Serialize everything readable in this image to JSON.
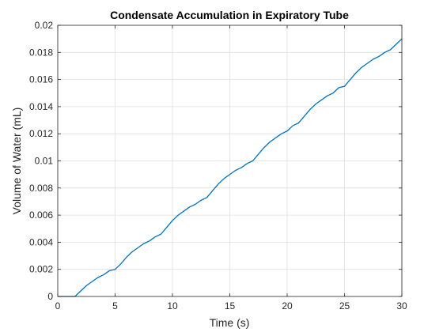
{
  "chart_data": {
    "type": "line",
    "title": "Condensate Accumulation in Expiratory Tube",
    "xlabel": "Time (s)",
    "ylabel": "Volume of Water (mL)",
    "xlim": [
      0,
      30
    ],
    "ylim": [
      0,
      0.02
    ],
    "x_ticks": [
      0,
      5,
      10,
      15,
      20,
      25,
      30
    ],
    "x_tick_labels": [
      "0",
      "5",
      "10",
      "15",
      "20",
      "25",
      "30"
    ],
    "y_ticks": [
      0,
      0.002,
      0.004,
      0.006,
      0.008,
      0.01,
      0.012,
      0.014,
      0.016,
      0.018,
      0.02
    ],
    "y_tick_labels": [
      "0",
      "0.002",
      "0.004",
      "0.006",
      "0.008",
      "0.01",
      "0.012",
      "0.014",
      "0.016",
      "0.018",
      "0.02"
    ],
    "grid": true,
    "line_color": "#0072BD",
    "series": [
      {
        "x": [
          0,
          1.5,
          2,
          2.5,
          3,
          3.5,
          4,
          4.5,
          5,
          5.5,
          6,
          6.5,
          7,
          7.5,
          8,
          8.5,
          9,
          9.5,
          10,
          10.5,
          11,
          11.5,
          12,
          12.5,
          13,
          13.5,
          14,
          14.5,
          15,
          15.5,
          16,
          16.5,
          17,
          17.5,
          18,
          18.5,
          19,
          19.5,
          20,
          20.5,
          21,
          21.5,
          22,
          22.5,
          23,
          23.5,
          24,
          24.5,
          25,
          25.5,
          26,
          26.5,
          27,
          27.5,
          28,
          28.5,
          29,
          29.5,
          30
        ],
        "y": [
          0,
          0,
          0.0004,
          0.0008,
          0.0011,
          0.0014,
          0.0016,
          0.0019,
          0.002,
          0.0024,
          0.0029,
          0.0033,
          0.0036,
          0.0039,
          0.0041,
          0.0044,
          0.0046,
          0.0051,
          0.0056,
          0.006,
          0.0063,
          0.0066,
          0.0068,
          0.0071,
          0.0073,
          0.0078,
          0.0083,
          0.0087,
          0.009,
          0.0093,
          0.0095,
          0.0098,
          0.01,
          0.0105,
          0.011,
          0.0114,
          0.0117,
          0.012,
          0.0122,
          0.0126,
          0.0128,
          0.0133,
          0.0138,
          0.0142,
          0.0145,
          0.0148,
          0.015,
          0.0154,
          0.0155,
          0.016,
          0.0165,
          0.0169,
          0.0172,
          0.0175,
          0.0177,
          0.018,
          0.0182,
          0.0186,
          0.019
        ]
      }
    ]
  }
}
